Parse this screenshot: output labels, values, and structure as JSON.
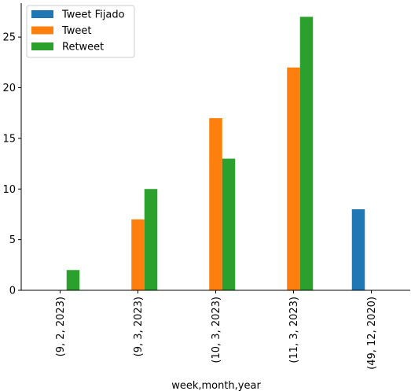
{
  "chart_data": {
    "type": "bar",
    "categories": [
      "(9, 2, 2023)",
      "(9, 3, 2023)",
      "(10, 3, 2023)",
      "(11, 3, 2023)",
      "(49, 12, 2020)"
    ],
    "series": [
      {
        "name": "Tweet Fijado",
        "color": "#1f77b4",
        "values": [
          0,
          0,
          0,
          0,
          8
        ]
      },
      {
        "name": "Tweet",
        "color": "#ff7f0e",
        "values": [
          0,
          7,
          17,
          22,
          0
        ]
      },
      {
        "name": "Retweet",
        "color": "#2ca02c",
        "values": [
          2,
          10,
          13,
          27,
          0
        ]
      }
    ],
    "xlabel": "week,month,year",
    "ylabel": "",
    "ylim": [
      0,
      28.35
    ],
    "yticks": [
      0,
      5,
      10,
      15,
      20,
      25
    ],
    "grid": false,
    "legend": "top-left"
  }
}
